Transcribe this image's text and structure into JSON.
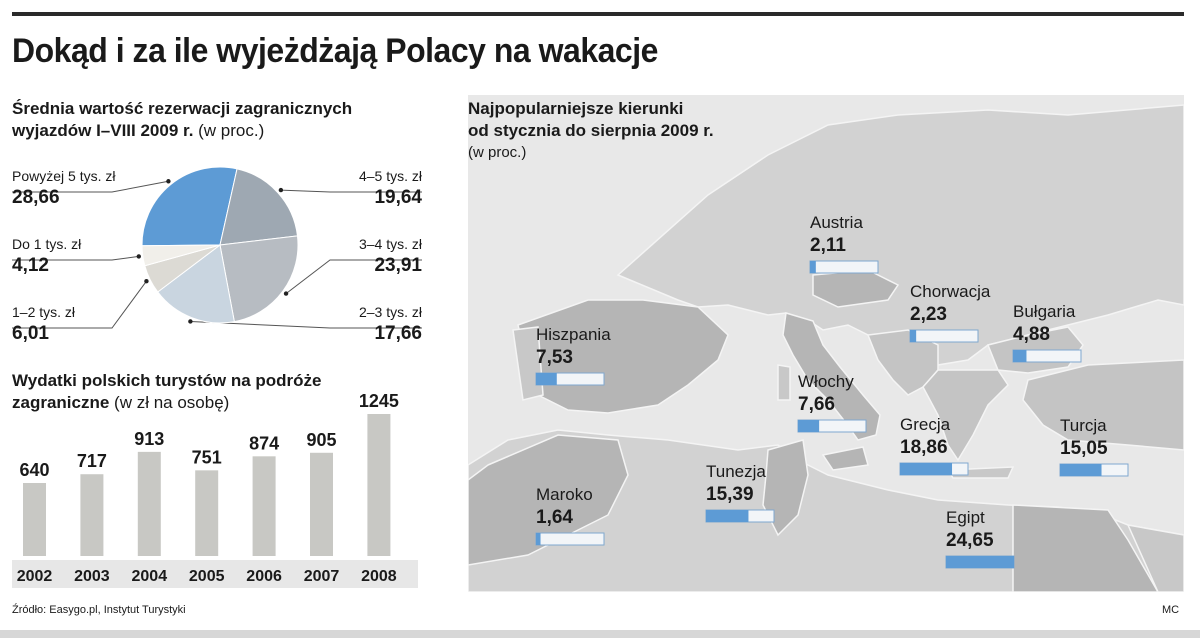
{
  "title": "Dokąd i za ile wyjeżdżają Polacy na wakacje",
  "colors": {
    "pie": [
      "#5d9bd5",
      "#f1efea",
      "#dcdad4",
      "#c9d5e0",
      "#b7bcc2",
      "#9ea8b2"
    ],
    "bars": "#c8c8c4",
    "bar_bg": "#ececec",
    "map_bg": "#e6e6e6",
    "map_land": "#b4b4b4",
    "map_fill": "#5d9bd5"
  },
  "pie_section": {
    "title_line1": "Średnia wartość rezerwacji zagranicznych",
    "title_line2_bold": "wyjazdów I–VIII 2009 r.",
    "title_line2_unit": " (w proc.)"
  },
  "bar_section": {
    "title_line1": "Wydatki polskich turystów na podróże",
    "title_line2_bold": "zagraniczne",
    "title_line2_unit": " (w zł na osobę)"
  },
  "map_section": {
    "title_line1": "Najpopularniejsze kierunki",
    "title_line2": "od stycznia do sierpnia 2009 r.",
    "title_unit": "(w proc.)"
  },
  "chart_data": [
    {
      "type": "pie",
      "title": "Średnia wartość rezerwacji zagranicznych wyjazdów I–VIII 2009 r. (w proc.)",
      "slices": [
        {
          "label": "Powyżej 5 tys. zł",
          "value": 28.66,
          "display": "28,66"
        },
        {
          "label": "Do 1 tys. zł",
          "value": 4.12,
          "display": "4,12"
        },
        {
          "label": "1–2 tys. zł",
          "value": 6.01,
          "display": "6,01"
        },
        {
          "label": "2–3 tys. zł",
          "value": 17.66,
          "display": "17,66"
        },
        {
          "label": "3–4 tys. zł",
          "value": 23.91,
          "display": "23,91"
        },
        {
          "label": "4–5 tys. zł",
          "value": 19.64,
          "display": "19,64"
        }
      ]
    },
    {
      "type": "bar",
      "title": "Wydatki polskich turystów na podróże zagraniczne (w zł na osobę)",
      "categories": [
        "2002",
        "2003",
        "2004",
        "2005",
        "2006",
        "2007",
        "2008"
      ],
      "values": [
        640,
        717,
        913,
        751,
        874,
        905,
        1245
      ]
    },
    {
      "type": "bar",
      "title": "Najpopularniejsze kierunki od stycznia do sierpnia 2009 r. (w proc.)",
      "categories": [
        "Austria",
        "Chorwacja",
        "Bułgaria",
        "Hiszpania",
        "Włochy",
        "Grecja",
        "Turcja",
        "Maroko",
        "Tunezja",
        "Egipt"
      ],
      "values": [
        2.11,
        2.23,
        4.88,
        7.53,
        7.66,
        18.86,
        15.05,
        1.64,
        15.39,
        24.65
      ],
      "display": [
        "2,11",
        "2,23",
        "4,88",
        "7,53",
        "7,66",
        "18,86",
        "15,05",
        "1,64",
        "15,39",
        "24,65"
      ],
      "ylim": [
        0,
        24.65
      ]
    }
  ],
  "footer": {
    "source": "Źródło: Easygo.pl, Instytut Turystyki",
    "author": "MC"
  }
}
